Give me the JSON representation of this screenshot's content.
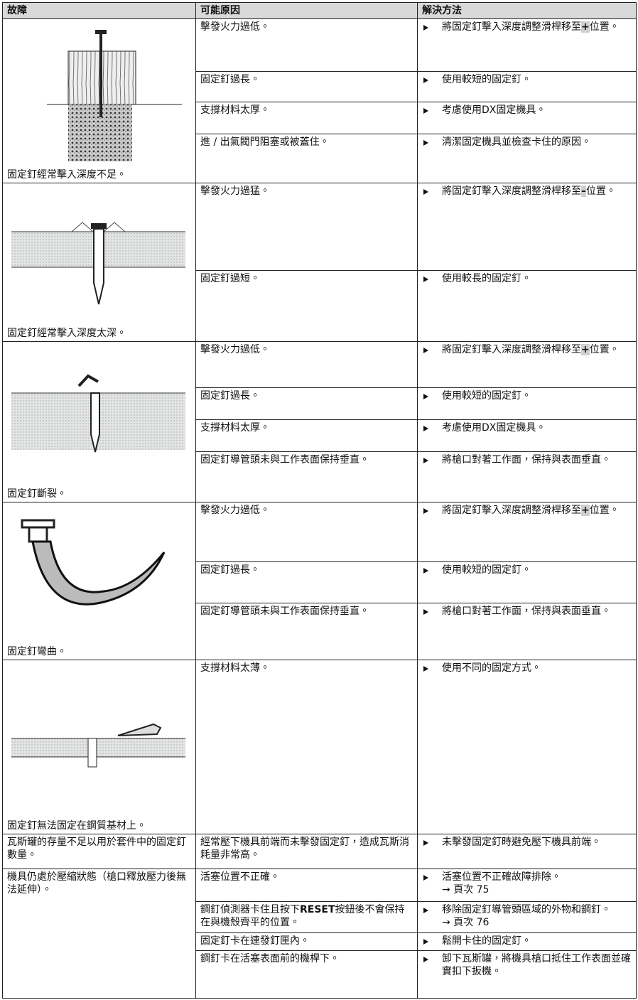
{
  "header": [
    "故障",
    "可能原因",
    "解決方法"
  ],
  "groups": [
    {
      "fault": "固定釘經常擊入深度不足。",
      "causes": [
        {
          "cause": "擊發火力過低。",
          "solution": {
            "pre": "將固定釘擊入深度調整滑桿移至",
            "mark": "+",
            "post": "位置。"
          }
        },
        {
          "cause": "固定釘過長。",
          "solution": "使用較短的固定釘。"
        },
        {
          "cause": "支撐材料太厚。",
          "solution": "考慮使用DX固定機具。"
        },
        {
          "cause": "進 / 出氣閥門阻塞或被蓋住。",
          "solution": "清潔固定機具並檢查卡住的原因。"
        }
      ]
    },
    {
      "fault": "固定釘經常擊入深度太深。",
      "causes": [
        {
          "cause": "擊發火力過猛。",
          "solution": {
            "pre": "將固定釘擊入深度調整滑桿移至",
            "mark": "–",
            "post": "位置。"
          }
        },
        {
          "cause": "固定釘過短。",
          "solution": "使用較長的固定釘。"
        }
      ]
    },
    {
      "fault": "固定釘斷裂。",
      "causes": [
        {
          "cause": "擊發火力過低。",
          "solution": {
            "pre": "將固定釘擊入深度調整滑桿移至",
            "mark": "+",
            "post": "位置。"
          }
        },
        {
          "cause": "固定釘過長。",
          "solution": "使用較短的固定釘。"
        },
        {
          "cause": "支撐材料太厚。",
          "solution": "考慮使用DX固定機具。"
        },
        {
          "cause": "固定釘導管頭未與工作表面保持垂直。",
          "solution": "將槍口對著工作面，保持與表面垂直。"
        }
      ]
    },
    {
      "fault": "固定釘彎曲。",
      "causes": [
        {
          "cause": "擊發火力過低。",
          "solution": {
            "pre": "將固定釘擊入深度調整滑桿移至",
            "mark": "+",
            "post": "位置。"
          }
        },
        {
          "cause": "固定釘過長。",
          "solution": "使用較短的固定釘。"
        },
        {
          "cause": "固定釘導管頭未與工作表面保持垂直。",
          "solution": "將槍口對著工作面，保持與表面垂直。"
        }
      ]
    },
    {
      "fault": "固定釘無法固定在鋼質基材上。",
      "causes": [
        {
          "cause": "支撐材料太薄。",
          "solution": "使用不同的固定方式。"
        }
      ]
    },
    {
      "fault": "瓦斯罐的存量不足以用於套件中的固定釘數量。",
      "causes": [
        {
          "cause": "經常壓下機具前端而未擊發固定釘，造成瓦斯消耗量非常高。",
          "solution": "未擊發固定釘時避免壓下機具前端。"
        }
      ]
    },
    {
      "fault": "機具仍處於壓縮狀態（槍口釋放壓力後無法延伸）。",
      "causes": [
        {
          "cause": "活塞位置不正確。",
          "solution": {
            "text": "活塞位置不正確故障排除。",
            "ref": "→ 頁次 75"
          }
        },
        {
          "cause": {
            "pre": "鋼釘偵測器卡住且按下",
            "mark": "RESET",
            "post": "按鈕後不會保持在與機殼齊平的位置。"
          },
          "solution": {
            "text": "移除固定釘導管頭區域的外物和鋼釘。",
            "ref": "→ 頁次 76"
          }
        },
        {
          "cause": "固定釘卡在連發釘匣內。",
          "solution": "鬆開卡住的固定釘。"
        },
        {
          "cause": "鋼釘卡在活塞表面前的機桿下。",
          "solution": "卸下瓦斯罐，將機具槍口抵住工作表面並確實扣下扳機。"
        }
      ]
    }
  ]
}
